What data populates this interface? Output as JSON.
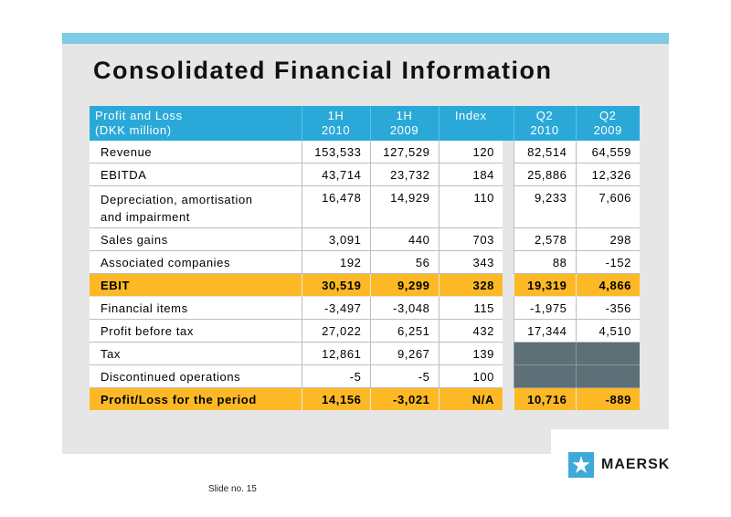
{
  "slide": {
    "title": "Consolidated Financial Information",
    "footer": "Slide no. 15",
    "logo_text": "MAERSK",
    "logo_icon": "star-icon"
  },
  "colors": {
    "accent_bar": "#7ecbe6",
    "header": "#2aa9d9",
    "highlight": "#fdb925",
    "dark_cell": "#5d6f77"
  },
  "table": {
    "header": {
      "label_line1": "Profit and Loss",
      "label_line2": "(DKK million)",
      "cols": [
        {
          "line1": "1H",
          "line2": "2010"
        },
        {
          "line1": "1H",
          "line2": "2009"
        },
        {
          "line1": "Index",
          "line2": ""
        },
        {
          "line1": "Q2",
          "line2": "2010"
        },
        {
          "line1": "Q2",
          "line2": "2009"
        }
      ]
    },
    "rows": [
      {
        "label": "Revenue",
        "values": [
          "153,533",
          "127,529",
          "120",
          "82,514",
          "64,559"
        ]
      },
      {
        "label": "EBITDA",
        "values": [
          "43,714",
          "23,732",
          "184",
          "25,886",
          "12,326"
        ]
      },
      {
        "label": "Depreciation, amortisation",
        "label2": "and impairment",
        "values": [
          "16,478",
          "14,929",
          "110",
          "9,233",
          "7,606"
        ]
      },
      {
        "label": "Sales gains",
        "values": [
          "3,091",
          "440",
          "703",
          "2,578",
          "298"
        ]
      },
      {
        "label": "Associated companies",
        "values": [
          "192",
          "56",
          "343",
          "88",
          "-152"
        ]
      },
      {
        "label": "EBIT",
        "values": [
          "30,519",
          "9,299",
          "328",
          "19,319",
          "4,866"
        ]
      },
      {
        "label": "Financial items",
        "values": [
          "-3,497",
          "-3,048",
          "115",
          "-1,975",
          "-356"
        ]
      },
      {
        "label": "Profit before tax",
        "values": [
          "27,022",
          "6,251",
          "432",
          "17,344",
          "4,510"
        ]
      },
      {
        "label": "Tax",
        "values": [
          "12,861",
          "9,267",
          "139",
          "",
          ""
        ]
      },
      {
        "label": "Discontinued operations",
        "values": [
          "-5",
          "-5",
          "100",
          "",
          ""
        ]
      },
      {
        "label": "Profit/Loss for the period",
        "values": [
          "14,156",
          "-3,021",
          "N/A",
          "10,716",
          "-889"
        ]
      }
    ]
  }
}
